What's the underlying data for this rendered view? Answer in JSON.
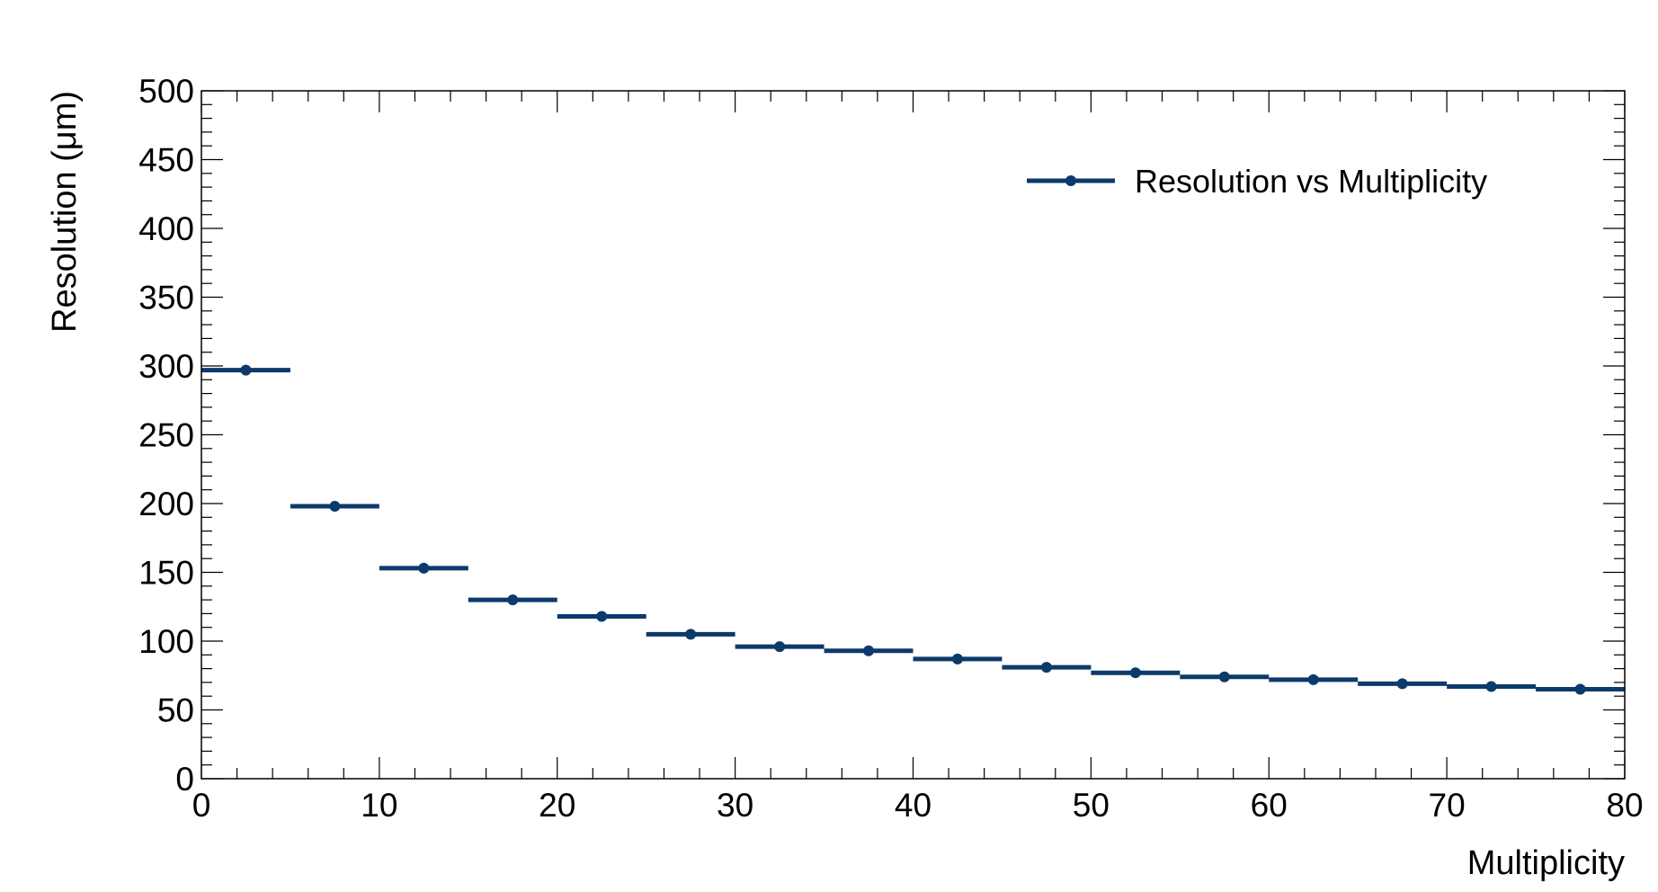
{
  "chart_data": {
    "type": "scatter",
    "title": "",
    "xlabel": "Multiplicity",
    "ylabel": "Resolution (μm)",
    "xlim": [
      0,
      80
    ],
    "ylim": [
      0,
      500
    ],
    "x_ticks": [
      "0",
      "10",
      "20",
      "30",
      "40",
      "50",
      "60",
      "70",
      "80"
    ],
    "y_ticks": [
      "0",
      "50",
      "100",
      "150",
      "200",
      "250",
      "300",
      "350",
      "400",
      "450",
      "500"
    ],
    "grid": false,
    "legend_position": "top-right",
    "series": [
      {
        "name": "Resolution vs Multiplicity",
        "color": "#0b3a6b",
        "marker": "circle",
        "x_err": 2.5,
        "x": [
          2.5,
          7.5,
          12.5,
          17.5,
          22.5,
          27.5,
          32.5,
          37.5,
          42.5,
          47.5,
          52.5,
          57.5,
          62.5,
          67.5,
          72.5,
          77.5
        ],
        "y": [
          297,
          198,
          153,
          130,
          118,
          105,
          96,
          93,
          87,
          81,
          77,
          74,
          72,
          69,
          67,
          65
        ]
      }
    ]
  }
}
